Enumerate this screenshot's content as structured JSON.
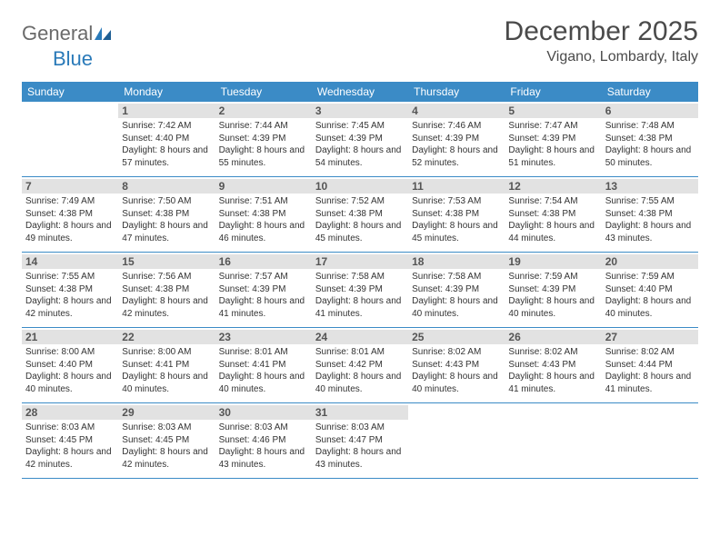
{
  "logo": {
    "text1": "General",
    "text2": "Blue"
  },
  "title": "December 2025",
  "location": "Vigano, Lombardy, Italy",
  "weekdays": [
    "Sunday",
    "Monday",
    "Tuesday",
    "Wednesday",
    "Thursday",
    "Friday",
    "Saturday"
  ],
  "colors": {
    "header_bg": "#3b8bc6",
    "daynum_bg": "#e2e2e2",
    "row_border": "#3b8bc6",
    "logo_gray": "#6a6a6a",
    "logo_blue": "#2a7ab9"
  },
  "first_weekday_index": 1,
  "days": [
    {
      "n": 1,
      "sunrise": "7:42 AM",
      "sunset": "4:40 PM",
      "daylight": "8 hours and 57 minutes."
    },
    {
      "n": 2,
      "sunrise": "7:44 AM",
      "sunset": "4:39 PM",
      "daylight": "8 hours and 55 minutes."
    },
    {
      "n": 3,
      "sunrise": "7:45 AM",
      "sunset": "4:39 PM",
      "daylight": "8 hours and 54 minutes."
    },
    {
      "n": 4,
      "sunrise": "7:46 AM",
      "sunset": "4:39 PM",
      "daylight": "8 hours and 52 minutes."
    },
    {
      "n": 5,
      "sunrise": "7:47 AM",
      "sunset": "4:39 PM",
      "daylight": "8 hours and 51 minutes."
    },
    {
      "n": 6,
      "sunrise": "7:48 AM",
      "sunset": "4:38 PM",
      "daylight": "8 hours and 50 minutes."
    },
    {
      "n": 7,
      "sunrise": "7:49 AM",
      "sunset": "4:38 PM",
      "daylight": "8 hours and 49 minutes."
    },
    {
      "n": 8,
      "sunrise": "7:50 AM",
      "sunset": "4:38 PM",
      "daylight": "8 hours and 47 minutes."
    },
    {
      "n": 9,
      "sunrise": "7:51 AM",
      "sunset": "4:38 PM",
      "daylight": "8 hours and 46 minutes."
    },
    {
      "n": 10,
      "sunrise": "7:52 AM",
      "sunset": "4:38 PM",
      "daylight": "8 hours and 45 minutes."
    },
    {
      "n": 11,
      "sunrise": "7:53 AM",
      "sunset": "4:38 PM",
      "daylight": "8 hours and 45 minutes."
    },
    {
      "n": 12,
      "sunrise": "7:54 AM",
      "sunset": "4:38 PM",
      "daylight": "8 hours and 44 minutes."
    },
    {
      "n": 13,
      "sunrise": "7:55 AM",
      "sunset": "4:38 PM",
      "daylight": "8 hours and 43 minutes."
    },
    {
      "n": 14,
      "sunrise": "7:55 AM",
      "sunset": "4:38 PM",
      "daylight": "8 hours and 42 minutes."
    },
    {
      "n": 15,
      "sunrise": "7:56 AM",
      "sunset": "4:38 PM",
      "daylight": "8 hours and 42 minutes."
    },
    {
      "n": 16,
      "sunrise": "7:57 AM",
      "sunset": "4:39 PM",
      "daylight": "8 hours and 41 minutes."
    },
    {
      "n": 17,
      "sunrise": "7:58 AM",
      "sunset": "4:39 PM",
      "daylight": "8 hours and 41 minutes."
    },
    {
      "n": 18,
      "sunrise": "7:58 AM",
      "sunset": "4:39 PM",
      "daylight": "8 hours and 40 minutes."
    },
    {
      "n": 19,
      "sunrise": "7:59 AM",
      "sunset": "4:39 PM",
      "daylight": "8 hours and 40 minutes."
    },
    {
      "n": 20,
      "sunrise": "7:59 AM",
      "sunset": "4:40 PM",
      "daylight": "8 hours and 40 minutes."
    },
    {
      "n": 21,
      "sunrise": "8:00 AM",
      "sunset": "4:40 PM",
      "daylight": "8 hours and 40 minutes."
    },
    {
      "n": 22,
      "sunrise": "8:00 AM",
      "sunset": "4:41 PM",
      "daylight": "8 hours and 40 minutes."
    },
    {
      "n": 23,
      "sunrise": "8:01 AM",
      "sunset": "4:41 PM",
      "daylight": "8 hours and 40 minutes."
    },
    {
      "n": 24,
      "sunrise": "8:01 AM",
      "sunset": "4:42 PM",
      "daylight": "8 hours and 40 minutes."
    },
    {
      "n": 25,
      "sunrise": "8:02 AM",
      "sunset": "4:43 PM",
      "daylight": "8 hours and 40 minutes."
    },
    {
      "n": 26,
      "sunrise": "8:02 AM",
      "sunset": "4:43 PM",
      "daylight": "8 hours and 41 minutes."
    },
    {
      "n": 27,
      "sunrise": "8:02 AM",
      "sunset": "4:44 PM",
      "daylight": "8 hours and 41 minutes."
    },
    {
      "n": 28,
      "sunrise": "8:03 AM",
      "sunset": "4:45 PM",
      "daylight": "8 hours and 42 minutes."
    },
    {
      "n": 29,
      "sunrise": "8:03 AM",
      "sunset": "4:45 PM",
      "daylight": "8 hours and 42 minutes."
    },
    {
      "n": 30,
      "sunrise": "8:03 AM",
      "sunset": "4:46 PM",
      "daylight": "8 hours and 43 minutes."
    },
    {
      "n": 31,
      "sunrise": "8:03 AM",
      "sunset": "4:47 PM",
      "daylight": "8 hours and 43 minutes."
    }
  ],
  "labels": {
    "sunrise": "Sunrise:",
    "sunset": "Sunset:",
    "daylight": "Daylight:"
  }
}
